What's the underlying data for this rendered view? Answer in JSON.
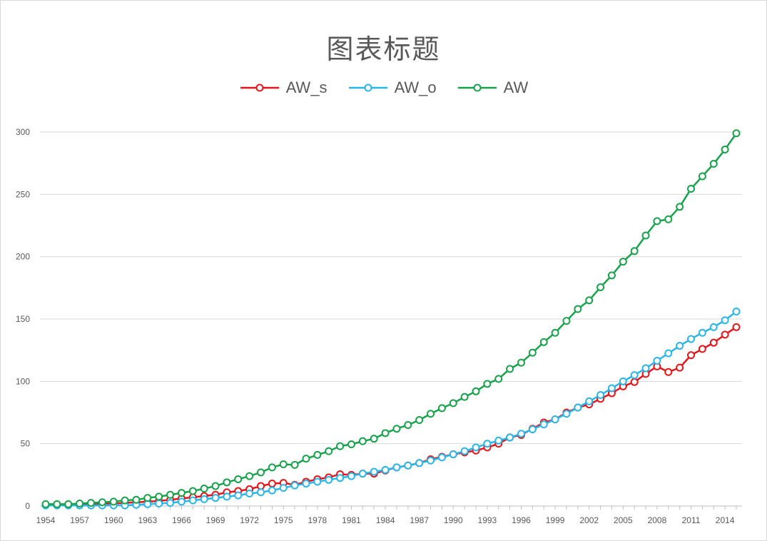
{
  "chart_data": {
    "type": "line",
    "title": "图表标题",
    "xlabel": "",
    "ylabel": "",
    "ylim": [
      0,
      300
    ],
    "yticks": [
      0,
      50,
      100,
      150,
      200,
      250,
      300
    ],
    "xticks": [
      1954,
      1957,
      1960,
      1963,
      1966,
      1969,
      1972,
      1975,
      1978,
      1981,
      1984,
      1987,
      1990,
      1993,
      1996,
      1999,
      2002,
      2005,
      2008,
      2011,
      2014
    ],
    "xlim": [
      1954,
      2015
    ],
    "grid": "horizontal",
    "legend_position": "top",
    "x": [
      1954,
      1955,
      1956,
      1957,
      1958,
      1959,
      1960,
      1961,
      1962,
      1963,
      1964,
      1965,
      1966,
      1967,
      1968,
      1969,
      1970,
      1971,
      1972,
      1973,
      1974,
      1975,
      1976,
      1977,
      1978,
      1979,
      1980,
      1981,
      1982,
      1983,
      1984,
      1985,
      1986,
      1987,
      1988,
      1989,
      1990,
      1991,
      1992,
      1993,
      1994,
      1995,
      1996,
      1997,
      1998,
      1999,
      2000,
      2001,
      2002,
      2003,
      2004,
      2005,
      2006,
      2007,
      2008,
      2009,
      2010,
      2011,
      2012,
      2013,
      2014,
      2015
    ],
    "series": [
      {
        "name": "AW_s",
        "color": "#e8141b",
        "values": [
          1,
          1,
          1,
          1.5,
          1.5,
          2,
          2,
          2.5,
          3,
          3.5,
          4,
          5,
          6,
          7,
          8,
          9,
          11,
          12,
          13.5,
          16,
          18,
          18.5,
          17,
          19.5,
          21.5,
          23,
          25.5,
          25,
          26,
          26,
          28.5,
          31,
          32.5,
          34.5,
          37.5,
          39.5,
          41.5,
          43,
          44.5,
          47,
          50,
          55,
          57,
          62,
          67,
          69.5,
          75,
          79,
          81.5,
          86,
          90.5,
          96,
          99.5,
          106,
          112,
          107.5,
          111,
          121,
          126,
          131,
          137.5,
          143.5
        ]
      },
      {
        "name": "AW_o",
        "color": "#29b6e8",
        "values": [
          0.5,
          0.5,
          0.5,
          0.5,
          0.5,
          0.5,
          0.5,
          0.5,
          1,
          1.5,
          2,
          2.5,
          3.5,
          4.5,
          5.5,
          6.5,
          7.5,
          8.5,
          10,
          11,
          12.5,
          14.5,
          16.5,
          18,
          19.5,
          21,
          22.5,
          24,
          26,
          27.5,
          29,
          31,
          32.5,
          34.5,
          36.5,
          39,
          41.5,
          44,
          47,
          50,
          52.5,
          55,
          58,
          61.5,
          65.5,
          69.5,
          74,
          79,
          84,
          89,
          94.5,
          100,
          105,
          110.5,
          116.5,
          122.5,
          128.5,
          134,
          139,
          143.5,
          149,
          156
        ]
      },
      {
        "name": "AW",
        "color": "#17a24b",
        "values": [
          1.5,
          1.5,
          1.5,
          2,
          2.5,
          3,
          3.5,
          4.5,
          5,
          6.5,
          7.5,
          9,
          10.5,
          12,
          14,
          16,
          19,
          21.5,
          24,
          27,
          31,
          33.5,
          33,
          38,
          41,
          44,
          48,
          49.5,
          52,
          54,
          58.5,
          62,
          65,
          69,
          74,
          78.5,
          82.5,
          87.5,
          92,
          98,
          102,
          110,
          115,
          123,
          131.5,
          139,
          148.5,
          158,
          165,
          175.5,
          185,
          196,
          204.5,
          217,
          228.5,
          230,
          240,
          254.5,
          264.5,
          274.5,
          286,
          299
        ]
      }
    ]
  }
}
